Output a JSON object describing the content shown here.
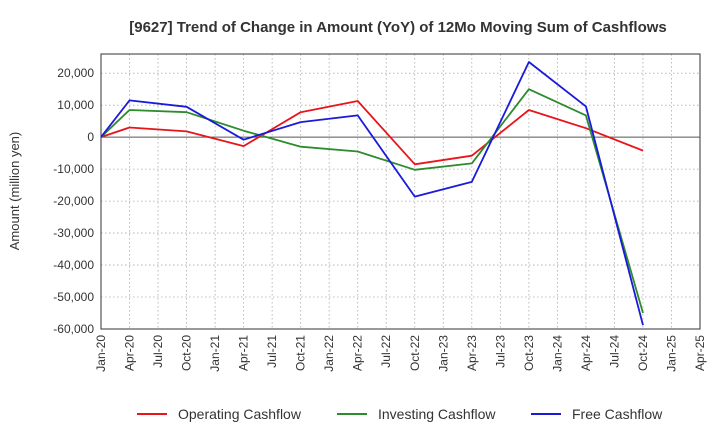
{
  "chart_data": {
    "type": "line",
    "title": "[9627]  Trend of Change in Amount (YoY) of 12Mo Moving Sum of Cashflows",
    "xlabel": "",
    "ylabel": "Amount (million yen)",
    "ylim": [
      -60000,
      26000
    ],
    "yticks": [
      20000,
      10000,
      0,
      -10000,
      -20000,
      -30000,
      -40000,
      -50000,
      -60000
    ],
    "ytick_labels": [
      "20,000",
      "10,000",
      "0",
      "-10,000",
      "-20,000",
      "-30,000",
      "-40,000",
      "-50,000",
      "-60,000"
    ],
    "categories": [
      "Jan-20",
      "Apr-20",
      "Jul-20",
      "Oct-20",
      "Jan-21",
      "Apr-21",
      "Jul-21",
      "Oct-21",
      "Jan-22",
      "Apr-22",
      "Jul-22",
      "Oct-22",
      "Jan-23",
      "Apr-23",
      "Jul-23",
      "Oct-23",
      "Jan-24",
      "Apr-24",
      "Jul-24",
      "Oct-24",
      "Jan-25",
      "Apr-25"
    ],
    "grid": true,
    "legend_position": "bottom",
    "series": [
      {
        "name": "Operating Cashflow",
        "color": "#e8151b",
        "points": [
          [
            0,
            0
          ],
          [
            1,
            3000
          ],
          [
            3,
            1800
          ],
          [
            5,
            -2800
          ],
          [
            7,
            7800
          ],
          [
            9,
            11300
          ],
          [
            11,
            -8500
          ],
          [
            13,
            -5800
          ],
          [
            15,
            8500
          ],
          [
            17,
            2800
          ],
          [
            19,
            -4200
          ]
        ]
      },
      {
        "name": "Investing Cashflow",
        "color": "#2e8b2e",
        "points": [
          [
            0,
            0
          ],
          [
            1,
            8500
          ],
          [
            3,
            7800
          ],
          [
            5,
            2000
          ],
          [
            7,
            -3000
          ],
          [
            9,
            -4500
          ],
          [
            11,
            -10200
          ],
          [
            13,
            -8200
          ],
          [
            15,
            15000
          ],
          [
            17,
            6800
          ],
          [
            19,
            -55000
          ]
        ]
      },
      {
        "name": "Free Cashflow",
        "color": "#1a1adb",
        "points": [
          [
            0,
            0
          ],
          [
            1,
            11500
          ],
          [
            3,
            9500
          ],
          [
            5,
            -800
          ],
          [
            7,
            4700
          ],
          [
            9,
            6800
          ],
          [
            11,
            -18600
          ],
          [
            13,
            -14000
          ],
          [
            15,
            23500
          ],
          [
            17,
            9600
          ],
          [
            19,
            -58800
          ]
        ]
      }
    ]
  }
}
